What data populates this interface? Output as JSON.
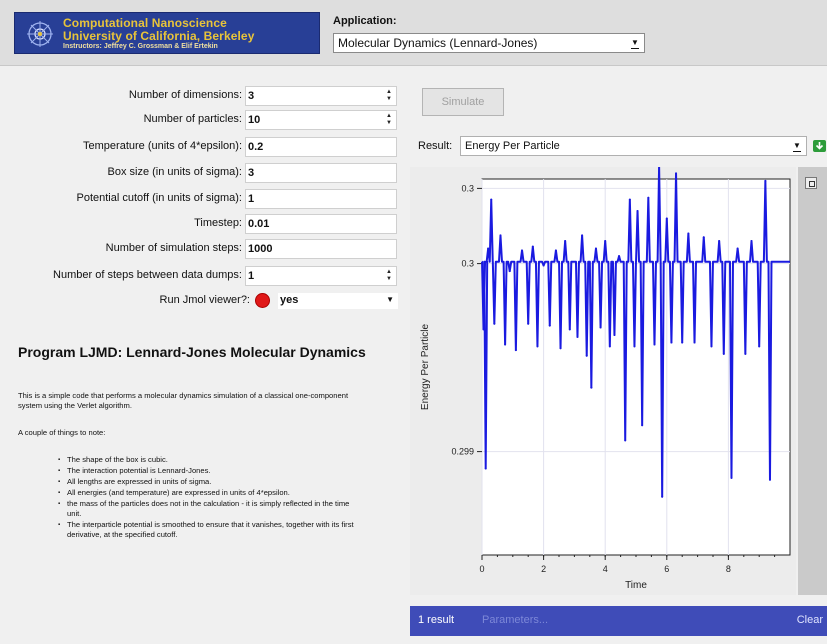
{
  "header": {
    "banner_line1": "Computational Nanoscience",
    "banner_line2": "University of California, Berkeley",
    "banner_line3": "Instructors: Jeffrey C. Grossman & Elif Ertekin",
    "application_label": "Application:",
    "application_value": "Molecular Dynamics (Lennard-Jones)",
    "banner_color": "#283f96",
    "banner_text_color": "#e8c43a"
  },
  "form": {
    "rows": [
      {
        "label": "Number of dimensions:",
        "value": "3",
        "control": "spinner"
      },
      {
        "label": "Number of particles:",
        "value": "10",
        "control": "spinner"
      },
      {
        "label": "Temperature (units of 4*epsilon):",
        "value": "0.2",
        "control": "text"
      },
      {
        "label": "Box size (in units of sigma):",
        "value": "3",
        "control": "text"
      },
      {
        "label": "Potential cutoff (in units of sigma):",
        "value": "1",
        "control": "text"
      },
      {
        "label": "Timestep:",
        "value": "0.01",
        "control": "text"
      },
      {
        "label": "Number of simulation steps:",
        "value": "1000",
        "control": "text"
      },
      {
        "label": "Number of steps between data dumps:",
        "value": "1",
        "control": "spinner"
      }
    ],
    "jmol_label": "Run Jmol viewer?:",
    "jmol_value": "yes",
    "jmol_indicator_color": "#e01818"
  },
  "description": {
    "title": "Program LJMD: Lennard-Jones Molecular Dynamics",
    "paragraph1": "This is a simple code that performs a molecular dynamics simulation of a classical one-component system using the Verlet algorithm.",
    "paragraph2": "A couple of things to note:",
    "notes": [
      "The shape of the box is cubic.",
      "The interaction potential is Lennard-Jones.",
      "All lengths are expressed in units of sigma.",
      "All energies (and temperature) are expressed in units of 4*epsilon.",
      "the mass of the particles does not in the calculation - it is simply reflected in the time unit.",
      "The interparticle potential is smoothed to ensure that it vanishes, together with its first derivative, at the specified cutoff."
    ]
  },
  "results": {
    "simulate_button": "Simulate",
    "result_label": "Result:",
    "result_value": "Energy Per Particle",
    "bottom_count": "1 result",
    "parameters_link": "Parameters...",
    "clear_link": "Clear",
    "bar_color": "#3f4cb8"
  },
  "chart_data": {
    "type": "line",
    "title": "",
    "xlabel": "Time",
    "ylabel": "Energy Per Particle",
    "xlim": [
      0,
      10
    ],
    "ylim": [
      0.29835,
      0.30035
    ],
    "x_ticks": [
      "0",
      "2",
      "4",
      "6",
      "8"
    ],
    "x_tick_values": [
      0,
      2,
      4,
      6,
      8
    ],
    "y_ticks": [
      "0.3",
      "0.3",
      "0.299"
    ],
    "y_tick_values": [
      0.3003,
      0.2999,
      0.2989
    ],
    "grid": true,
    "series": [
      {
        "color": "#1a1ae0",
        "baseline": 0.29991,
        "spikes": [
          {
            "x": 0.05,
            "y": 0.29955
          },
          {
            "x": 0.12,
            "y": 0.29881
          },
          {
            "x": 0.2,
            "y": 0.29998
          },
          {
            "x": 0.3,
            "y": 0.30024
          },
          {
            "x": 0.4,
            "y": 0.29958
          },
          {
            "x": 0.6,
            "y": 0.30005
          },
          {
            "x": 0.75,
            "y": 0.29947
          },
          {
            "x": 0.9,
            "y": 0.29986
          },
          {
            "x": 1.1,
            "y": 0.29944
          },
          {
            "x": 1.3,
            "y": 0.29997
          },
          {
            "x": 1.5,
            "y": 0.29958
          },
          {
            "x": 1.65,
            "y": 0.29999
          },
          {
            "x": 1.8,
            "y": 0.29946
          },
          {
            "x": 2.0,
            "y": 0.29989
          },
          {
            "x": 2.2,
            "y": 0.29957
          },
          {
            "x": 2.4,
            "y": 0.29997
          },
          {
            "x": 2.55,
            "y": 0.29945
          },
          {
            "x": 2.7,
            "y": 0.30002
          },
          {
            "x": 2.85,
            "y": 0.29955
          },
          {
            "x": 3.1,
            "y": 0.29951
          },
          {
            "x": 3.25,
            "y": 0.30005
          },
          {
            "x": 3.4,
            "y": 0.29941
          },
          {
            "x": 3.55,
            "y": 0.29924
          },
          {
            "x": 3.7,
            "y": 0.29998
          },
          {
            "x": 3.85,
            "y": 0.29956
          },
          {
            "x": 4.0,
            "y": 0.30002
          },
          {
            "x": 4.15,
            "y": 0.29946
          },
          {
            "x": 4.3,
            "y": 0.29952
          },
          {
            "x": 4.45,
            "y": 0.29994
          },
          {
            "x": 4.65,
            "y": 0.29896
          },
          {
            "x": 4.8,
            "y": 0.30024
          },
          {
            "x": 4.95,
            "y": 0.29946
          },
          {
            "x": 5.05,
            "y": 0.30018
          },
          {
            "x": 5.2,
            "y": 0.29904
          },
          {
            "x": 5.4,
            "y": 0.30025
          },
          {
            "x": 5.6,
            "y": 0.29947
          },
          {
            "x": 5.75,
            "y": 0.30042
          },
          {
            "x": 5.85,
            "y": 0.29866
          },
          {
            "x": 6.0,
            "y": 0.30014
          },
          {
            "x": 6.15,
            "y": 0.29948
          },
          {
            "x": 6.3,
            "y": 0.30038
          },
          {
            "x": 6.5,
            "y": 0.29948
          },
          {
            "x": 6.7,
            "y": 0.30006
          },
          {
            "x": 6.9,
            "y": 0.29948
          },
          {
            "x": 7.2,
            "y": 0.30004
          },
          {
            "x": 7.45,
            "y": 0.29946
          },
          {
            "x": 7.7,
            "y": 0.30002
          },
          {
            "x": 7.85,
            "y": 0.29942
          },
          {
            "x": 8.1,
            "y": 0.29876
          },
          {
            "x": 8.3,
            "y": 0.29998
          },
          {
            "x": 8.55,
            "y": 0.29942
          },
          {
            "x": 8.75,
            "y": 0.30002
          },
          {
            "x": 9.0,
            "y": 0.29946
          },
          {
            "x": 9.2,
            "y": 0.30034
          },
          {
            "x": 9.35,
            "y": 0.29875
          }
        ]
      }
    ]
  }
}
